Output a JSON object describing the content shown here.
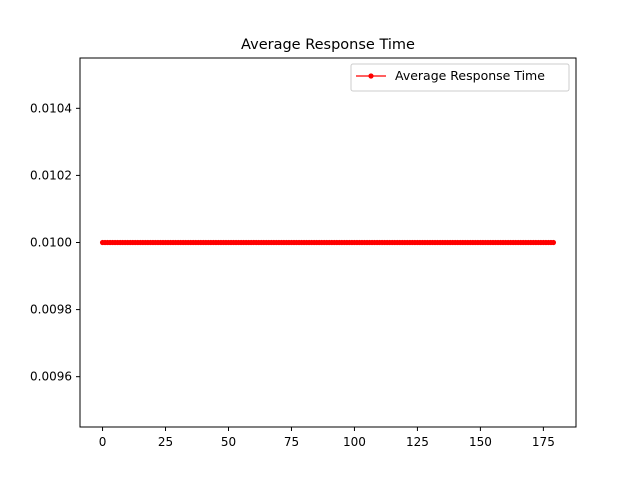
{
  "chart_data": {
    "type": "line",
    "title": "Average Response Time",
    "xlabel": "",
    "ylabel": "",
    "xlim": [
      -8.95,
      187.95
    ],
    "ylim": [
      0.00945,
      0.01055
    ],
    "x_ticks": [
      0,
      25,
      50,
      75,
      100,
      125,
      150,
      175
    ],
    "x_tick_labels": [
      "0",
      "25",
      "50",
      "75",
      "100",
      "125",
      "150",
      "175"
    ],
    "y_ticks": [
      0.0096,
      0.0098,
      0.01,
      0.0102,
      0.0104
    ],
    "y_tick_labels": [
      "0.0096",
      "0.0098",
      "0.0100",
      "0.0102",
      "0.0104"
    ],
    "grid": false,
    "legend": {
      "placement": "top-right"
    },
    "series": [
      {
        "name": "Average Response Time",
        "color": "#ff0000",
        "marker": "circle",
        "x_start": 0,
        "x_end": 179,
        "x_step": 1,
        "constant_value": 0.01
      }
    ]
  }
}
